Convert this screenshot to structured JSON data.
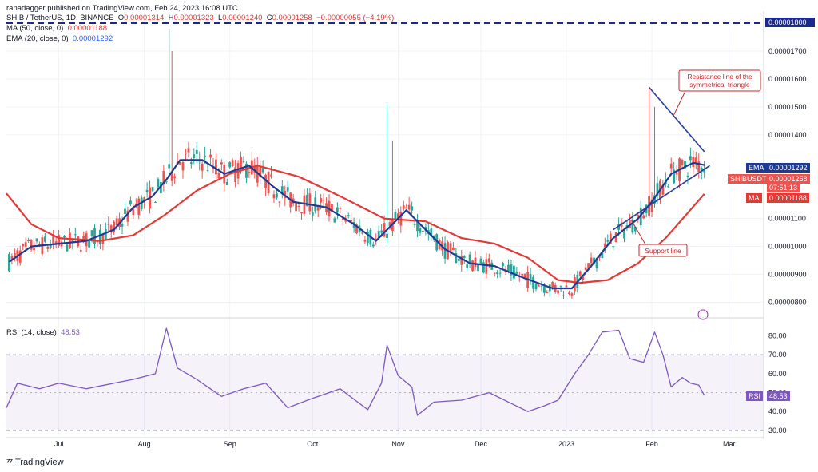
{
  "header": {
    "publisher": "ranadagger published on TradingView.com, Feb 24, 2023 16:08 UTC",
    "symbol": "SHIB / TetherUS, 1D, BINANCE",
    "ohlc": {
      "o_label": "O",
      "o": "0.00001314",
      "h_label": "H",
      "h": "0.00001323",
      "l_label": "L",
      "l": "0.00001240",
      "c_label": "C",
      "c": "0.00001258",
      "change": "−0.00000055 (−4.19%)"
    },
    "ma_label": "MA (50, close, 0)",
    "ma_value": "0.00001188",
    "ema_label": "EMA (20, close, 0)",
    "ema_value": "0.00001292",
    "rsi_label": "RSI (14, close)",
    "rsi_value": "48.53"
  },
  "price_axis": {
    "unit": "USDT",
    "ticks": [
      "0.00001700",
      "0.00001600",
      "0.00001500",
      "0.00001400",
      "0.00001100",
      "0.00001000",
      "0.00000900",
      "0.00000800"
    ],
    "top_level_label": "0.00001800"
  },
  "time_axis": {
    "ticks": [
      "Jul",
      "Aug",
      "Sep",
      "Oct",
      "Nov",
      "Dec",
      "2023",
      "Feb",
      "Mar"
    ]
  },
  "rsi_axis": {
    "ticks": [
      "80.00",
      "70.00",
      "60.00",
      "50.00",
      "40.00",
      "30.00"
    ]
  },
  "tags": {
    "ema_tag": "EMA",
    "ema_val": "0.00001292",
    "sym_tag": "SHIBUSDT",
    "sym_val": "0.00001258",
    "countdown": "07:51:13",
    "ma_tag": "MA",
    "ma_val": "0.00001188",
    "rsi_tag": "RSI",
    "rsi_val": "48.53"
  },
  "annotations": {
    "resistance": [
      "Resistance line of the",
      "symmetrical triangle"
    ],
    "support": "Support line"
  },
  "brand": "TradingView",
  "colors": {
    "up": "#26a69a",
    "down": "#ef5350",
    "ema": "#1f3a93",
    "ma": "#e53935",
    "rsi": "#7e57c2",
    "trend": "#2a3f9d",
    "resistance_dash": "#1a2a8c",
    "annotation": "#c62828"
  },
  "chart_data": [
    {
      "type": "candlestick",
      "title": "SHIB / TetherUS, 1D, BINANCE",
      "ylabel": "USDT",
      "ylim": [
        7.5e-06,
        1.82e-05
      ],
      "x_range": [
        "2023-06-16",
        "2023-03-10"
      ],
      "series": [
        {
          "name": "EMA (20, close, 0)",
          "points": [
            [
              "Jun 17",
              9.45e-06
            ],
            [
              "Jun 25",
              1e-05
            ],
            [
              "Jul 5",
              1.01e-05
            ],
            [
              "Jul 15",
              1.02e-05
            ],
            [
              "Jul 25",
              1.06e-05
            ],
            [
              "Aug 1",
              1.14e-05
            ],
            [
              "Aug 8",
              1.18e-05
            ],
            [
              "Aug 13",
              1.24e-05
            ],
            [
              "Aug 18",
              1.31e-05
            ],
            [
              "Aug 26",
              1.31e-05
            ],
            [
              "Sep 3",
              1.26e-05
            ],
            [
              "Sep 12",
              1.29e-05
            ],
            [
              "Sep 20",
              1.22e-05
            ],
            [
              "Sep 28",
              1.16e-05
            ],
            [
              "Oct 10",
              1.14e-05
            ],
            [
              "Oct 20",
              1.08e-05
            ],
            [
              "Oct 28",
              1.02e-05
            ],
            [
              "Nov 3",
              1.08e-05
            ],
            [
              "Nov 8",
              1.13e-05
            ],
            [
              "Nov 14",
              1.07e-05
            ],
            [
              "Nov 22",
              9.9e-06
            ],
            [
              "Dec 1",
              9.4e-06
            ],
            [
              "Dec 10",
              9.3e-06
            ],
            [
              "Dec 20",
              8.9e-06
            ],
            [
              "Dec 31",
              8.5e-06
            ],
            [
              "Jan 7",
              8.5e-06
            ],
            [
              "Jan 14",
              9.3e-06
            ],
            [
              "Jan 22",
              1.03e-05
            ],
            [
              "Jan 31",
              1.1e-05
            ],
            [
              "Feb 5",
              1.16e-05
            ],
            [
              "Feb 12",
              1.26e-05
            ],
            [
              "Feb 20",
              1.3e-05
            ],
            [
              "Feb 24",
              1.292e-05
            ]
          ]
        },
        {
          "name": "MA (50, close, 0)",
          "points": [
            [
              "Jun 16",
              1.19e-05
            ],
            [
              "Jun 25",
              1.08e-05
            ],
            [
              "Jul 5",
              1.03e-05
            ],
            [
              "Jul 20",
              1.02e-05
            ],
            [
              "Aug 1",
              1.04e-05
            ],
            [
              "Aug 12",
              1.11e-05
            ],
            [
              "Aug 24",
              1.2e-05
            ],
            [
              "Sep 5",
              1.26e-05
            ],
            [
              "Sep 15",
              1.29e-05
            ],
            [
              "Sep 30",
              1.25e-05
            ],
            [
              "Oct 15",
              1.18e-05
            ],
            [
              "Oct 31",
              1.1e-05
            ],
            [
              "Nov 15",
              1.09e-05
            ],
            [
              "Nov 28",
              1.03e-05
            ],
            [
              "Dec 10",
              1.01e-05
            ],
            [
              "Dec 22",
              9.6e-06
            ],
            [
              "Jan 2",
              8.8e-06
            ],
            [
              "Jan 10",
              8.7e-06
            ],
            [
              "Jan 20",
              8.8e-06
            ],
            [
              "Jan 31",
              9.4e-06
            ],
            [
              "Feb 10",
              1.03e-05
            ],
            [
              "Feb 18",
              1.12e-05
            ],
            [
              "Feb 24",
              1.188e-05
            ]
          ]
        },
        {
          "name": "Resistance line of the symmetrical triangle",
          "points": [
            [
              "Feb 4",
              1.57e-05
            ],
            [
              "Feb 24",
              1.34e-05
            ]
          ]
        },
        {
          "name": "Support line",
          "points": [
            [
              "Jan 22",
              1.06e-05
            ],
            [
              "Feb 26",
              1.29e-05
            ]
          ]
        }
      ],
      "level": {
        "value": 1.8e-05,
        "label": "0.00001800"
      }
    },
    {
      "type": "line",
      "title": "RSI (14, close)",
      "ylim": [
        27,
        87
      ],
      "y_ticks": [
        80,
        70,
        60,
        50,
        40,
        30
      ],
      "bands": [
        30,
        70
      ],
      "series": [
        {
          "name": "RSI (14, close)",
          "points": [
            [
              "Jun 16",
              42
            ],
            [
              "Jun 20",
              55
            ],
            [
              "Jun 28",
              52
            ],
            [
              "Jul 5",
              55
            ],
            [
              "Jul 15",
              52
            ],
            [
              "Jul 25",
              55
            ],
            [
              "Aug 1",
              57
            ],
            [
              "Aug 9",
              60
            ],
            [
              "Aug 13",
              84
            ],
            [
              "Aug 17",
              63
            ],
            [
              "Aug 24",
              57
            ],
            [
              "Sep 2",
              48
            ],
            [
              "Sep 10",
              52
            ],
            [
              "Sep 18",
              55
            ],
            [
              "Sep 26",
              42
            ],
            [
              "Oct 5",
              47
            ],
            [
              "Oct 15",
              52
            ],
            [
              "Oct 25",
              41
            ],
            [
              "Oct 30",
              55
            ],
            [
              "Nov 1",
              75
            ],
            [
              "Nov 5",
              59
            ],
            [
              "Nov 10",
              53
            ],
            [
              "Nov 12",
              38
            ],
            [
              "Nov 18",
              45
            ],
            [
              "Nov 28",
              46
            ],
            [
              "Dec 8",
              50
            ],
            [
              "Dec 15",
              45
            ],
            [
              "Dec 22",
              40
            ],
            [
              "Dec 28",
              43
            ],
            [
              "Jan 2",
              46
            ],
            [
              "Jan 8",
              60
            ],
            [
              "Jan 13",
              70
            ],
            [
              "Jan 18",
              82
            ],
            [
              "Jan 24",
              83
            ],
            [
              "Jan 28",
              68
            ],
            [
              "Feb 2",
              66
            ],
            [
              "Feb 6",
              82
            ],
            [
              "Feb 9",
              70
            ],
            [
              "Feb 12",
              53
            ],
            [
              "Feb 16",
              58
            ],
            [
              "Feb 19",
              55
            ],
            [
              "Feb 22",
              54
            ],
            [
              "Feb 24",
              48.53
            ]
          ]
        }
      ]
    }
  ]
}
